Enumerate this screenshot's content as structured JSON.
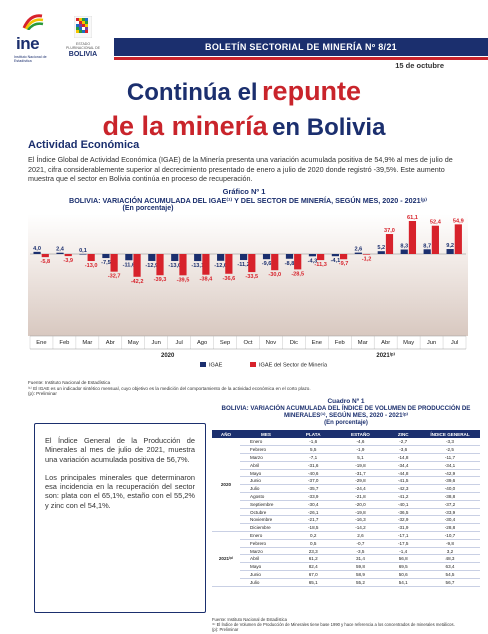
{
  "header": {
    "ine_logo_text": "ine",
    "ine_logo_sub": "Instituto Nacional de Estadística",
    "bolivia_sub": "ESTADO PLURINACIONAL DE",
    "bolivia_text": "BOLIVIA",
    "banner": "BOLETÍN SECTORIAL DE MINERÍA Nº 8/21",
    "date": "15 de octubre"
  },
  "title": {
    "part1": "Continúa el",
    "highlight1": "repunte",
    "highlight2": "de la minería",
    "part2": "en Bolivia"
  },
  "section": {
    "title": "Actividad Económica",
    "intro": "El Índice Global de Actividad Económica (IGAE) de la Minería presenta una variación acumulada positiva de 54,9% al mes de julio de 2021, cifra considerablemente superior al decrecimiento presentado de enero a julio de 2020 donde registró -39,5%. Este aumento muestra que el sector en Bolivia continúa en proceso de recuperación."
  },
  "chart_header": {
    "label": "Gráfico Nº 1",
    "title": "BOLIVIA: VARIACIÓN ACUMULADA DEL IGAE⁽¹⁾ Y DEL SECTOR DE MINERÍA, SEGÚN MES, 2020 - 2021⁽ᵖ⁾",
    "subtitle": "(En porcentaje)"
  },
  "chart_data": {
    "type": "bar",
    "categories": [
      "Ene",
      "Feb",
      "Mar",
      "Abr",
      "May",
      "Jun",
      "Jul",
      "Ago",
      "Sep",
      "Oct",
      "Nov",
      "Dic",
      "Ene",
      "Feb",
      "Mar",
      "Abr",
      "May",
      "Jun",
      "Jul"
    ],
    "year_labels": [
      "2020",
      "2021⁽ᵖ⁾"
    ],
    "series": [
      {
        "name": "IGAE",
        "color": "#1b2f6e",
        "values": [
          4.0,
          2.4,
          0.1,
          -7.5,
          -11.6,
          -12.9,
          -13.0,
          -13.1,
          -12.6,
          -11.2,
          -9.6,
          -8.8,
          -4.3,
          -4.1,
          2.6,
          5.2,
          8.3,
          8.7,
          9.2
        ]
      },
      {
        "name": "IGAE del Sector de Minería",
        "color": "#d7222b",
        "values": [
          -5.8,
          -3.9,
          -13.0,
          -32.7,
          -42.2,
          -39.3,
          -39.5,
          -38.4,
          -36.6,
          -33.5,
          -30.0,
          -28.5,
          -11.3,
          -9.7,
          -1.2,
          37.0,
          61.1,
          52.4,
          54.9
        ]
      }
    ],
    "value_labels_igae": [
      "4,0",
      "2,4",
      "0,1",
      "-7,5",
      "-11,6",
      "-12,9",
      "-13,0",
      "-13,1",
      "-12,6",
      "-11,2",
      "-9,6",
      "-8,8",
      "-4,3",
      "-4,1",
      "2,6",
      "5,2",
      "8,3",
      "8,7",
      "9,2"
    ],
    "value_labels_mineria": [
      "-5,8",
      "-3,9",
      "-13,0",
      "-32,7",
      "-42,2",
      "-39,3",
      "-39,5",
      "-38,4",
      "-36,6",
      "-33,5",
      "-30,0",
      "-28,5",
      "-11,3",
      "-9,7",
      "-1,2",
      "37,0",
      "61,1",
      "52,4",
      "54,9"
    ],
    "ylim": [
      -50,
      70
    ],
    "legend_position": "bottom"
  },
  "chart_sources": {
    "source": "Fuente: Instituto Nacional de Estadística",
    "note1": "⁽¹⁾ El IGAE es un indicador sintético mensual, cuyo objetivo es la medición del comportamiento de la actividad económica en el corto plazo.",
    "note2": "(p): Preliminar"
  },
  "callout": {
    "p1": "El Índice General de la Producción de Minerales al mes de julio de 2021, muestra una variación acumulada positiva de 56,7%.",
    "p2": "Los principales minerales que determinaron esa incidencia en la recuperación del sector son: plata con el 65,1%, estaño con el 55,2% y zinc con el 54,1%."
  },
  "table": {
    "label": "Cuadro Nº 1",
    "title": "BOLIVIA: VARIACIÓN ACUMULADA DEL ÍNDICE DE VOLUMEN DE PRODUCCIÓN DE MINERALES⁽¹⁾, SEGÚN MES, 2020 - 2021⁽ᵖ⁾",
    "subtitle": "(En porcentaje)",
    "columns": [
      "AÑO",
      "MES",
      "PLATA",
      "ESTAÑO",
      "ZINC",
      "ÍNDICE GENERAL"
    ],
    "groups": [
      {
        "year": "2020",
        "rows": [
          [
            "Enero",
            "-1,6",
            "-4,6",
            "-2,7",
            "-3,3"
          ],
          [
            "Febrero",
            "5,5",
            "-1,9",
            "-3,6",
            "-2,5"
          ],
          [
            "Marzo",
            "-7,1",
            "5,1",
            "-14,8",
            "-11,7"
          ],
          [
            "Abril",
            "-31,6",
            "-19,8",
            "-34,4",
            "-34,1"
          ],
          [
            "Mayo",
            "-40,6",
            "-31,7",
            "-44,8",
            "-42,9"
          ],
          [
            "Junio",
            "-37,0",
            "-29,8",
            "-41,5",
            "-39,6"
          ],
          [
            "Julio",
            "-35,7",
            "-24,4",
            "-42,3",
            "-40,0"
          ],
          [
            "Agosto",
            "-33,9",
            "-21,8",
            "-41,2",
            "-38,8"
          ],
          [
            "Septiembre",
            "-30,4",
            "-20,0",
            "-40,1",
            "-37,2"
          ],
          [
            "Octubre",
            "-26,1",
            "-19,8",
            "-36,5",
            "-33,9"
          ],
          [
            "Noviembre",
            "-21,7",
            "-16,3",
            "-32,9",
            "-30,4"
          ],
          [
            "Diciembre",
            "-18,5",
            "-14,2",
            "-31,9",
            "-28,8"
          ]
        ]
      },
      {
        "year": "2021⁽ᵖ⁾",
        "rows": [
          [
            "Enero",
            "0,2",
            "2,6",
            "-17,1",
            "-10,7"
          ],
          [
            "Febrero",
            "0,5",
            "-0,7",
            "-17,5",
            "-9,8"
          ],
          [
            "Marzo",
            "23,3",
            "-3,5",
            "-1,4",
            "3,2"
          ],
          [
            "Abril",
            "61,2",
            "31,4",
            "56,8",
            "48,3"
          ],
          [
            "Mayo",
            "82,4",
            "59,8",
            "69,5",
            "63,4"
          ],
          [
            "Junio",
            "67,0",
            "58,9",
            "50,6",
            "54,5"
          ],
          [
            "Julio",
            "65,1",
            "55,2",
            "54,1",
            "56,7"
          ]
        ]
      }
    ],
    "source": "Fuente: Instituto Nacional de Estadística",
    "note1": "⁽¹⁾ El Índice de Volumen de Producción de Minerales tiene base 1990 y hace referencia a los concentrados de minerales metálicos.",
    "note2": "(p): Preliminar"
  },
  "colors": {
    "navy": "#1b2f6e",
    "red": "#c9242b"
  }
}
